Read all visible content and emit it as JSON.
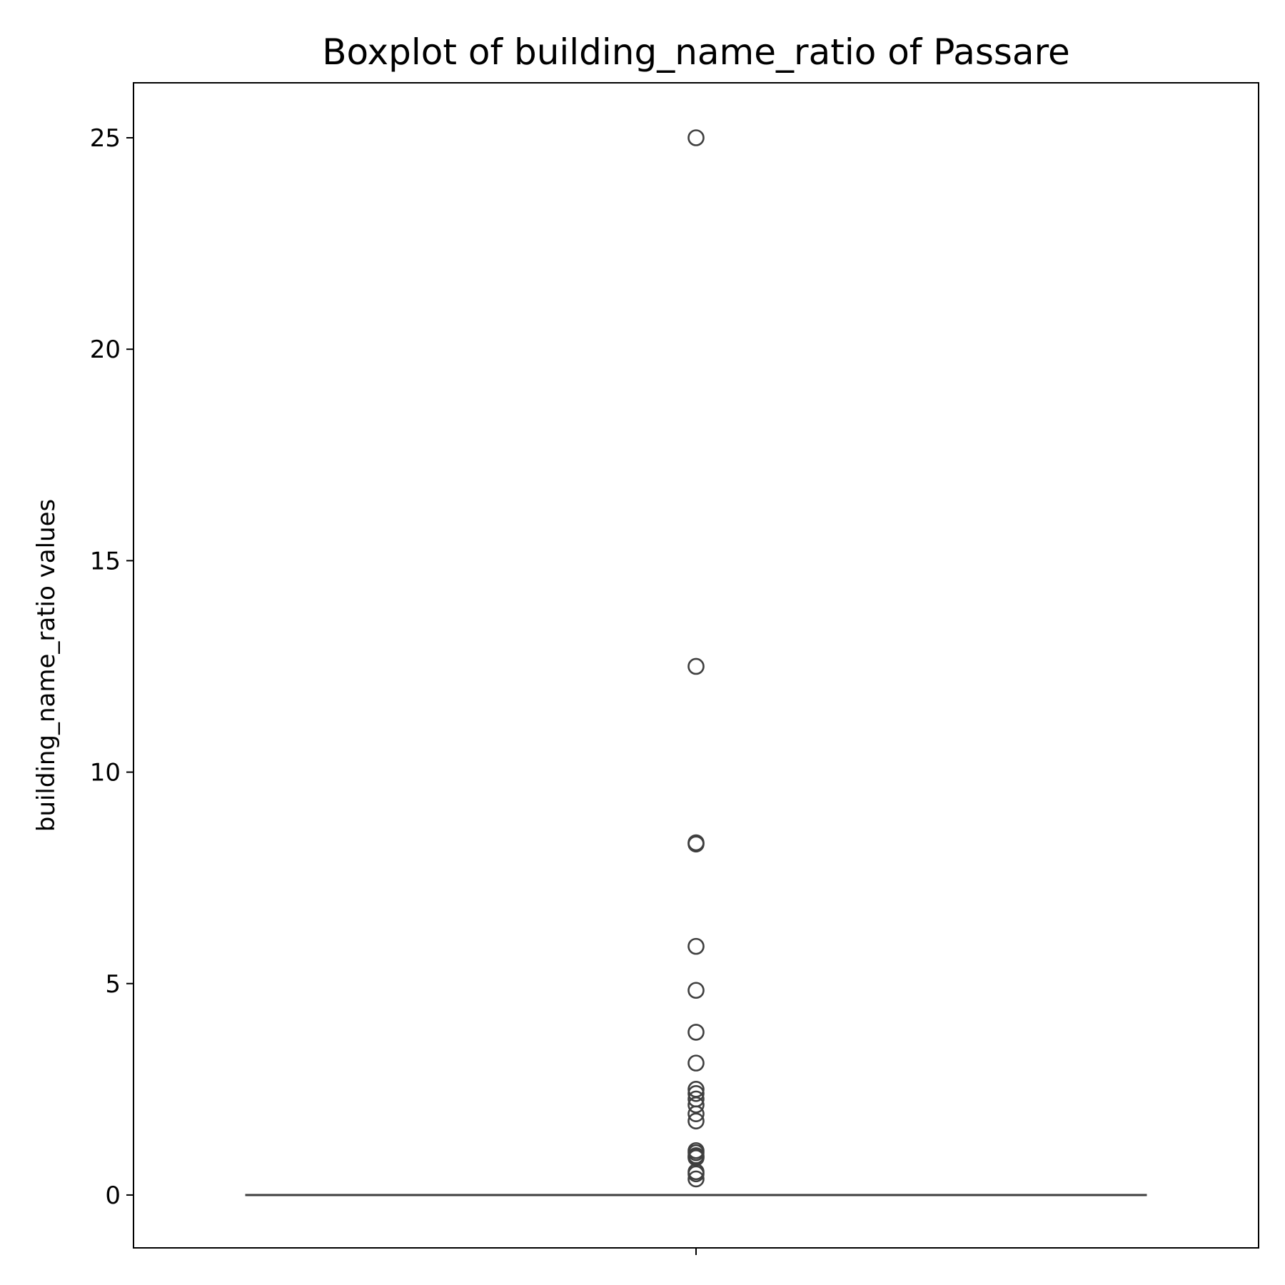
{
  "chart_data": {
    "type": "box",
    "title": "Boxplot of building_name_ratio of Passare",
    "xlabel": "",
    "ylabel": "building_name_ratio values",
    "ylim": [
      -1.25,
      26.3
    ],
    "yticks": [
      0,
      5,
      10,
      15,
      20,
      25
    ],
    "ytick_labels": [
      "0",
      "5",
      "10",
      "15",
      "20",
      "25"
    ],
    "grid": false,
    "box": {
      "q1": 0,
      "median": 0,
      "q3": 0,
      "whisker_low": 0,
      "whisker_high": 0
    },
    "outliers": [
      25.0,
      12.5,
      8.33,
      8.3,
      5.88,
      4.84,
      3.85,
      3.12,
      2.5,
      2.4,
      2.27,
      2.13,
      1.92,
      1.75,
      1.05,
      1.0,
      0.93,
      0.9,
      0.88,
      0.55,
      0.5,
      0.38
    ],
    "colors": {
      "box": "#3f3f3f",
      "outlier_edge": "#3f3f3f"
    }
  }
}
